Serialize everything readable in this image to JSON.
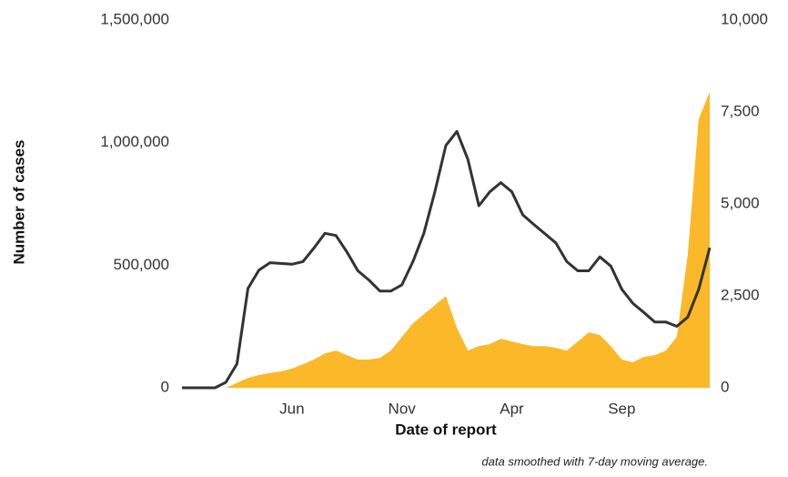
{
  "chart_data": {
    "type": "line",
    "xlabel": "Date of report",
    "ylabel": "Number of cases",
    "note": "data smoothed with 7-day moving average.",
    "categories": [
      null,
      null,
      null,
      null,
      null,
      null,
      null,
      null,
      null,
      null,
      "Jun",
      null,
      null,
      null,
      null,
      null,
      null,
      null,
      null,
      null,
      "Nov",
      null,
      null,
      null,
      null,
      null,
      null,
      null,
      null,
      null,
      "Apr",
      null,
      null,
      null,
      null,
      null,
      null,
      null,
      null,
      null,
      "Sep",
      null,
      null,
      null,
      null,
      null,
      null,
      null,
      null
    ],
    "series": [
      {
        "type": "area",
        "color": "#fbb829",
        "values": [
          0,
          0,
          0,
          0,
          0,
          20000,
          40000,
          52000,
          60000,
          67000,
          78000,
          96000,
          115000,
          140000,
          152000,
          133000,
          115000,
          115000,
          122000,
          152000,
          207000,
          263000,
          300000,
          337000,
          374000,
          244000,
          152000,
          170000,
          178000,
          200000,
          189000,
          178000,
          170000,
          170000,
          163000,
          152000,
          189000,
          226000,
          215000,
          170000,
          115000,
          104000,
          126000,
          133000,
          152000,
          207000,
          541000,
          1096000,
          1207000
        ]
      },
      {
        "type": "line",
        "axis": "y2",
        "color": "#333333",
        "values": [
          0,
          0,
          0,
          0,
          150,
          650,
          2700,
          3200,
          3400,
          3380,
          3360,
          3430,
          3800,
          4200,
          4140,
          3690,
          3180,
          2930,
          2630,
          2630,
          2800,
          3430,
          4200,
          5330,
          6590,
          6970,
          6210,
          4950,
          5330,
          5580,
          5330,
          4700,
          4440,
          4190,
          3940,
          3430,
          3180,
          3180,
          3560,
          3310,
          2680,
          2300,
          2050,
          1790,
          1790,
          1670,
          1920,
          2680,
          3810
        ]
      }
    ],
    "ylim": [
      0,
      1500000
    ],
    "yticks": [
      0,
      {
        "value": 500000,
        "label": "500,000"
      },
      {
        "value": 1000000,
        "label": "1,000,000"
      },
      {
        "value": 1500000,
        "label": "1,500,000"
      }
    ],
    "y2lim": [
      0,
      10000
    ],
    "y2ticks": [
      0,
      {
        "value": 2500,
        "label": "2,500"
      },
      {
        "value": 5000,
        "label": "5,000"
      },
      {
        "value": 7500,
        "label": "7,500"
      },
      {
        "value": 10000,
        "label": "10,000"
      }
    ],
    "grid": false
  }
}
